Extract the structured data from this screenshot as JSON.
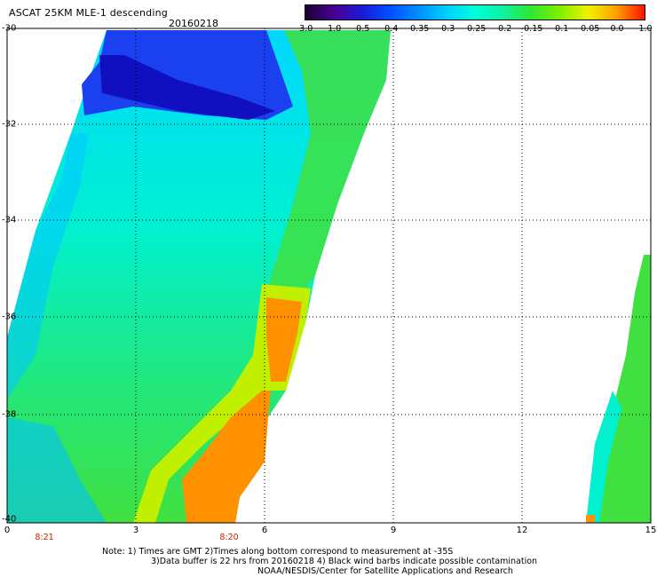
{
  "title": "ASCAT 25KM MLE-1 descending",
  "date": "20160218",
  "colorbar": {
    "labels": [
      "-3.0",
      "-1.0",
      "-0.5",
      "-0.4",
      "-0.35",
      "-0.3",
      "-0.25",
      "-0.2",
      "-0.15",
      "-0.1",
      "-0.05",
      "0.0",
      "1.0"
    ],
    "colors": [
      "#1a0030",
      "#4b0090",
      "#1a1ad8",
      "#0050ff",
      "#0090ff",
      "#00d0ff",
      "#00ffd8",
      "#10f0a0",
      "#30e830",
      "#80f000",
      "#f0f000",
      "#ffa000",
      "#ff1000"
    ]
  },
  "axes": {
    "lat_labels": [
      "-30",
      "-32",
      "-34",
      "-36",
      "-38",
      "-40"
    ],
    "lon_labels": [
      "0",
      "3",
      "6",
      "9",
      "12",
      "15"
    ]
  },
  "time_labels": [
    "8:21",
    "8:20"
  ],
  "notes": [
    "Note: 1) Times are GMT 2)Times along bottom correspond to measurement at -35S",
    "3)Data buffer is 22 hrs from 20160218 4) Black wind barbs indicate possible contamination",
    "NOAA/NESDIS/Center for Satellite Applications and Research"
  ]
}
